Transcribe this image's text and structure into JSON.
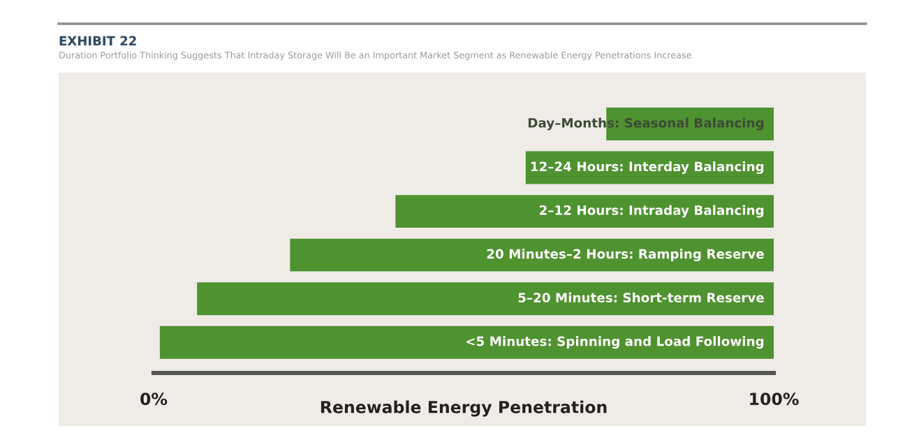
{
  "chart_data": {
    "type": "bar",
    "orientation": "horizontal",
    "title": "EXHIBIT 22",
    "subtitle": "Duration Portfolio Thinking Suggests That Intraday Storage Will Be an Important Market Segment as Renewable Energy Penetrations Increase",
    "xlabel": "Renewable Energy Penetration",
    "categories": [
      "Day–Months: Seasonal Balancing",
      "12–24 Hours: Interday Balancing",
      "2–12 Hours: Intraday Balancing",
      "20 Minutes–2 Hours: Ramping Reserve",
      "5–20 Minutes: Short-term Reserve",
      "<5 Minutes: Spinning and Load Following"
    ],
    "base": [
      73,
      60,
      39,
      22,
      7,
      1
    ],
    "values": [
      27,
      40,
      61,
      78,
      93,
      99
    ],
    "color": "#4f9230",
    "xlim": [
      0,
      100
    ],
    "xticks": [
      {
        "value": 0,
        "label": "0%"
      },
      {
        "value": 100,
        "label": "100%"
      }
    ],
    "grid": false
  }
}
